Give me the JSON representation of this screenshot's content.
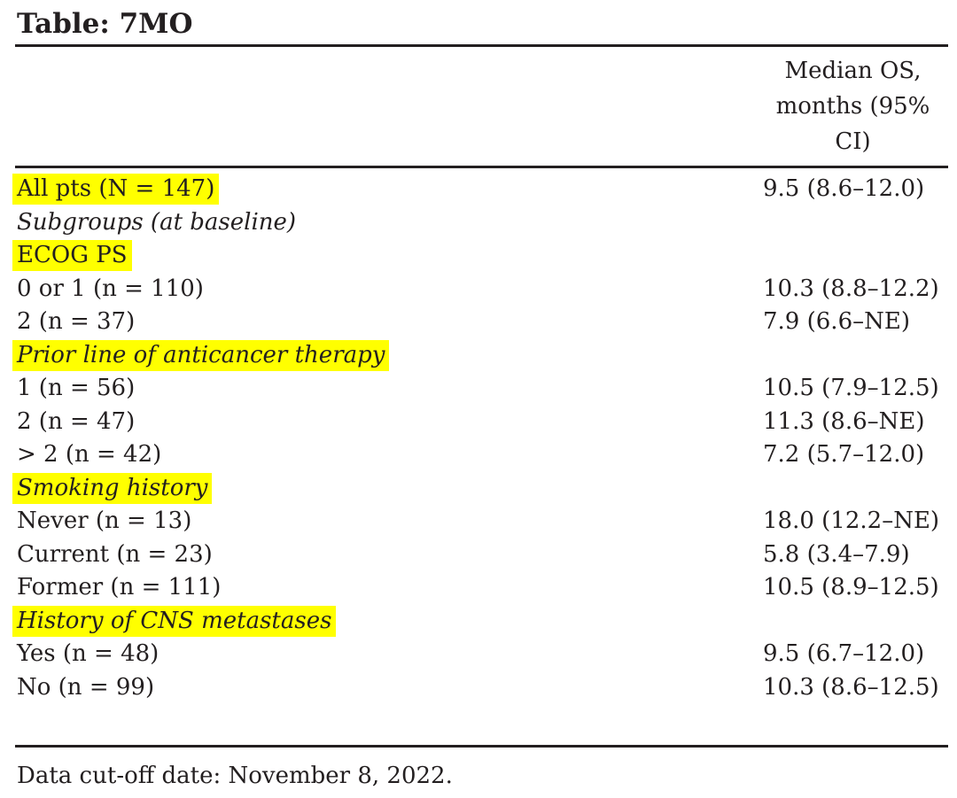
{
  "page": {
    "title": "Table: 7MO"
  },
  "table": {
    "value_column_header": "Median OS, months (95% CI)",
    "rows": [
      {
        "label": "All pts (N = 147)",
        "value": "9.5 (8.6–12.0)",
        "highlight": true,
        "italic": false
      },
      {
        "label": "Subgroups (at baseline)",
        "value": "",
        "highlight": false,
        "italic": true
      },
      {
        "label": "ECOG PS",
        "value": "",
        "highlight": true,
        "italic": false
      },
      {
        "label": "0 or 1 (n = 110)",
        "value": "10.3 (8.8–12.2)",
        "highlight": false,
        "italic": false
      },
      {
        "label": "2 (n = 37)",
        "value": "7.9 (6.6–NE)",
        "highlight": false,
        "italic": false
      },
      {
        "label": "Prior line of anticancer therapy",
        "value": "",
        "highlight": true,
        "italic": true
      },
      {
        "label": "1 (n = 56)",
        "value": "10.5 (7.9–12.5)",
        "highlight": false,
        "italic": false
      },
      {
        "label": "2 (n = 47)",
        "value": "11.3 (8.6–NE)",
        "highlight": false,
        "italic": false
      },
      {
        "label": "> 2 (n = 42)",
        "value": "7.2 (5.7–12.0)",
        "highlight": false,
        "italic": false
      },
      {
        "label": "Smoking history",
        "value": "",
        "highlight": true,
        "italic": true
      },
      {
        "label": "Never (n = 13)",
        "value": "18.0 (12.2–NE)",
        "highlight": false,
        "italic": false
      },
      {
        "label": "Current (n = 23)",
        "value": "5.8 (3.4–7.9)",
        "highlight": false,
        "italic": false
      },
      {
        "label": "Former (n = 111)",
        "value": "10.5 (8.9–12.5)",
        "highlight": false,
        "italic": false
      },
      {
        "label": "History of CNS metastases",
        "value": "",
        "highlight": true,
        "italic": true
      },
      {
        "label": "Yes (n = 48)",
        "value": "9.5 (6.7–12.0)",
        "highlight": false,
        "italic": false
      },
      {
        "label": "No (n = 99)",
        "value": "10.3 (8.6–12.5)",
        "highlight": false,
        "italic": false
      }
    ],
    "footnote": "Data cut-off date: November 8, 2022."
  },
  "colors": {
    "highlight_yellow": "#ffff00",
    "text": "#231f20",
    "rule": "#231f20"
  }
}
